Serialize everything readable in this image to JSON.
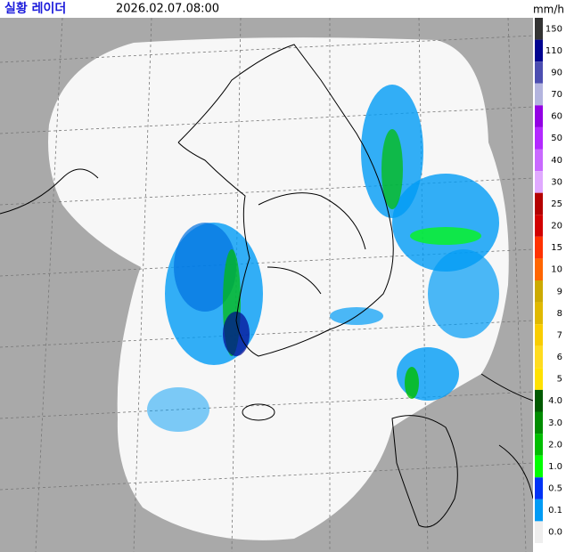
{
  "header": {
    "title": "실황 레이더",
    "time": "2026.02.07.08:00",
    "unit": "mm/h"
  },
  "legend": [
    {
      "label": "150",
      "color": "#333333"
    },
    {
      "label": "110",
      "color": "#000390"
    },
    {
      "label": "90",
      "color": "#4c4eb1"
    },
    {
      "label": "70",
      "color": "#b3b4de"
    },
    {
      "label": "60",
      "color": "#9300e4"
    },
    {
      "label": "50",
      "color": "#b329ff"
    },
    {
      "label": "40",
      "color": "#c969ff"
    },
    {
      "label": "30",
      "color": "#e0a9ff"
    },
    {
      "label": "25",
      "color": "#b40000"
    },
    {
      "label": "20",
      "color": "#d20000"
    },
    {
      "label": "15",
      "color": "#ff3200"
    },
    {
      "label": "10",
      "color": "#ff6600"
    },
    {
      "label": "9",
      "color": "#ccaa00"
    },
    {
      "label": "8",
      "color": "#e0b900"
    },
    {
      "label": "7",
      "color": "#f9cd00"
    },
    {
      "label": "6",
      "color": "#ffdc1f"
    },
    {
      "label": "5",
      "color": "#ffe100"
    },
    {
      "label": "4.0",
      "color": "#005a00"
    },
    {
      "label": "3.0",
      "color": "#008c00"
    },
    {
      "label": "2.0",
      "color": "#00be00"
    },
    {
      "label": "1.0",
      "color": "#00ff00"
    },
    {
      "label": "0.5",
      "color": "#0033f5"
    },
    {
      "label": "0.1",
      "color": "#009bf5"
    },
    {
      "label": "0.0",
      "color": "#eeeeee"
    }
  ]
}
